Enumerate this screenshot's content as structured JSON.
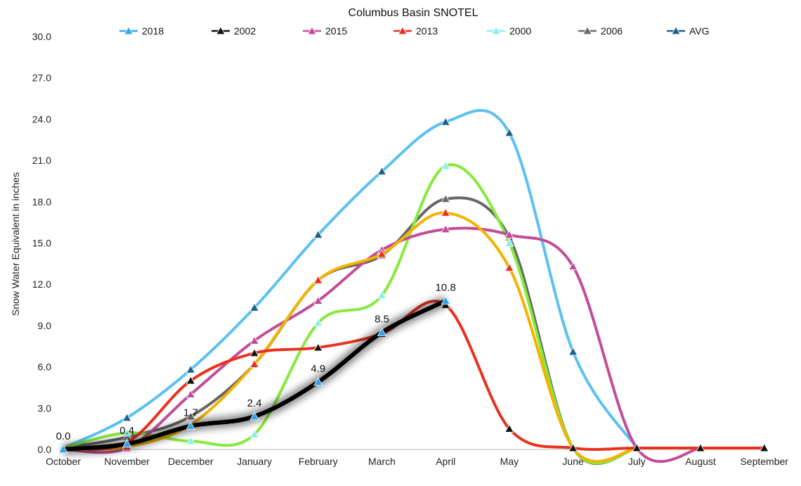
{
  "chart_data": {
    "type": "line",
    "title": "Columbus Basin SNOTEL",
    "xlabel": "",
    "ylabel": "Snow Water Equivalent in inches",
    "ylim": [
      0,
      30
    ],
    "yticks": [
      "0.0",
      "3.0",
      "6.0",
      "9.0",
      "12.0",
      "15.0",
      "18.0",
      "21.0",
      "24.0",
      "27.0",
      "30.0"
    ],
    "categories": [
      "October",
      "November",
      "December",
      "January",
      "February",
      "March",
      "April",
      "May",
      "June",
      "July",
      "August",
      "September"
    ],
    "series": [
      {
        "name": "AVG",
        "line_color": "#5bc0f2",
        "marker_color": "#1d5f8f",
        "values": [
          0.1,
          2.3,
          5.8,
          10.3,
          15.6,
          20.2,
          23.8,
          23.0,
          7.1,
          0.1,
          null,
          null
        ]
      },
      {
        "name": "2006",
        "line_color": "#666666",
        "marker_color": "#6b6b6b",
        "values": [
          0.1,
          0.9,
          2.4,
          6.2,
          12.3,
          14.1,
          18.2,
          15.4,
          0.1,
          0.1,
          null,
          null
        ]
      },
      {
        "name": "2000",
        "line_color": "#86ea3c",
        "marker_color": "#8cf0ea",
        "values": [
          0.1,
          1.2,
          0.6,
          1.1,
          9.2,
          11.2,
          20.6,
          15.0,
          0.1,
          0.1,
          null,
          null
        ]
      },
      {
        "name": "2015",
        "line_color": "#c24c9a",
        "marker_color": "#c24c9a",
        "values": [
          0.0,
          0.1,
          4.0,
          7.9,
          10.8,
          14.5,
          16.0,
          15.6,
          13.3,
          0.1,
          0.1,
          null
        ]
      },
      {
        "name": "2013",
        "line_color": "#f2b300",
        "marker_color": "#e8321e",
        "values": [
          0.0,
          0.2,
          1.8,
          6.2,
          12.3,
          14.2,
          17.2,
          13.2,
          0.1,
          0.1,
          null,
          null
        ]
      },
      {
        "name": "2002",
        "line_color": "#e8321e",
        "marker_color": "#111111",
        "values": [
          0.1,
          0.5,
          5.0,
          7.0,
          7.4,
          8.4,
          10.5,
          1.5,
          0.1,
          0.1,
          0.1,
          0.1
        ]
      },
      {
        "name": "2018",
        "line_color": "#000000",
        "marker_color": "#2fa3ea",
        "values": [
          0.0,
          0.4,
          1.7,
          2.4,
          4.9,
          8.5,
          10.8,
          null,
          null,
          null,
          null,
          null
        ]
      }
    ],
    "data_labels": [
      {
        "series": "2018",
        "index": 0,
        "text": "0.0"
      },
      {
        "series": "2018",
        "index": 1,
        "text": "0.4"
      },
      {
        "series": "2018",
        "index": 2,
        "text": "1.7"
      },
      {
        "series": "2018",
        "index": 3,
        "text": "2.4"
      },
      {
        "series": "2018",
        "index": 4,
        "text": "4.9"
      },
      {
        "series": "2018",
        "index": 5,
        "text": "8.5"
      },
      {
        "series": "2018",
        "index": 6,
        "text": "10.8"
      }
    ],
    "legend": [
      {
        "name": "2018",
        "color": "#2fa3ea"
      },
      {
        "name": "2002",
        "color": "#111111"
      },
      {
        "name": "2015",
        "color": "#c24c9a"
      },
      {
        "name": "2013",
        "color": "#e8321e"
      },
      {
        "name": "2000",
        "color": "#8cf0ea"
      },
      {
        "name": "2006",
        "color": "#6b6b6b"
      },
      {
        "name": "AVG",
        "color": "#1d5f8f"
      }
    ],
    "legend_position": "top",
    "grid": "horizontal-baseline"
  }
}
